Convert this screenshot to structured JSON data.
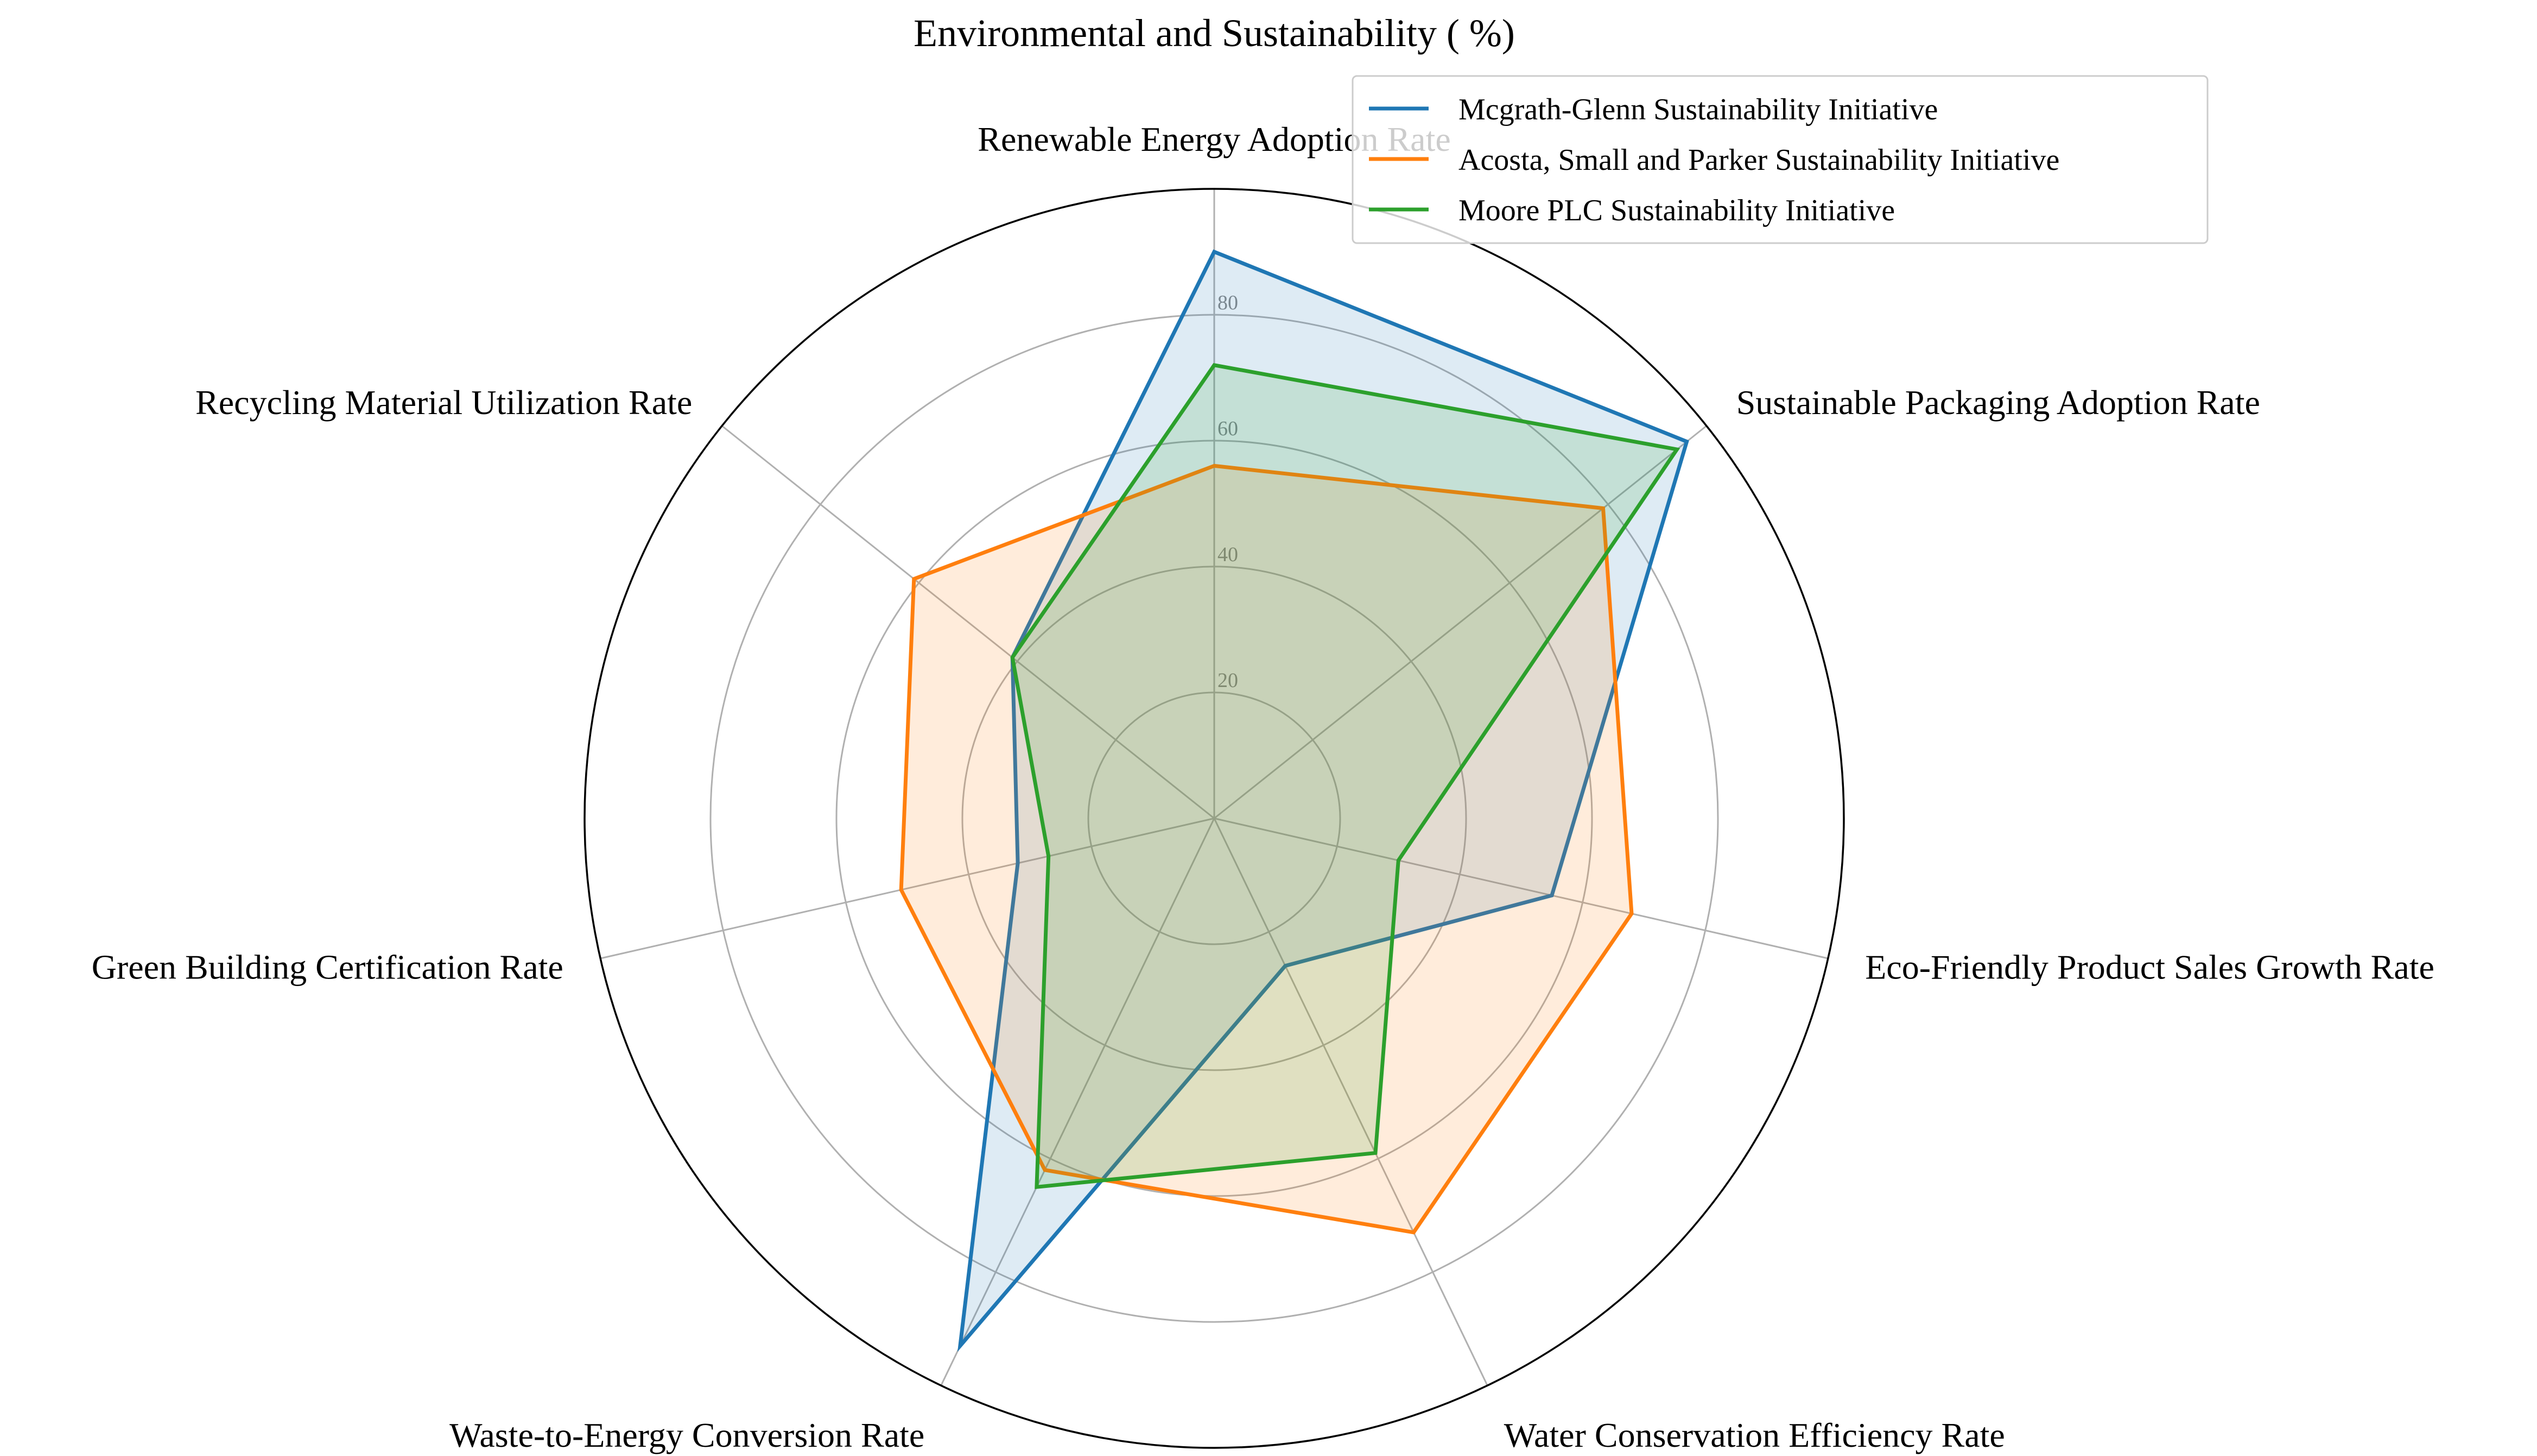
{
  "chart_data": {
    "type": "radar",
    "title": "Environmental and Sustainability ( %)",
    "axes": [
      "Renewable Energy Adoption Rate",
      "Sustainable Packaging Adoption Rate",
      "Eco-Friendly Product Sales Growth Rate",
      "Water Conservation Efficiency Rate",
      "Waste-to-Energy Conversion Rate",
      "Green Building Certification Rate",
      "Recycling Material Utilization Rate"
    ],
    "r_ticks": [
      "20",
      "40",
      "60",
      "80"
    ],
    "r_range": [
      0,
      100
    ],
    "grid": true,
    "legend_position": "top-right",
    "series": [
      {
        "name": "Mcgrath-Glenn Sustainability Initiative",
        "color": "#1f77b4",
        "values": [
          90,
          96,
          55,
          26,
          93,
          32,
          41
        ]
      },
      {
        "name": "Acosta, Small and Parker Sustainability Initiative",
        "color": "#ff7f0e",
        "values": [
          56,
          79,
          68,
          73,
          62,
          51,
          61
        ]
      },
      {
        "name": "Moore PLC Sustainability Initiative",
        "color": "#2ca02c",
        "values": [
          72,
          94,
          30,
          59,
          65,
          27,
          41
        ]
      }
    ]
  }
}
